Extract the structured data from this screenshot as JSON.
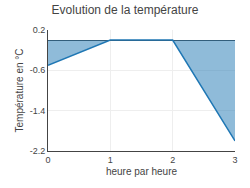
{
  "chart_data": {
    "type": "area",
    "title": "Evolution de la température",
    "xlabel": "heure par heure",
    "ylabel": "Température en °C",
    "x": [
      0,
      1,
      2,
      3
    ],
    "values": [
      -0.5,
      0.0,
      0.0,
      -2.0
    ],
    "xlim": [
      0,
      3
    ],
    "ylim": [
      -2.2,
      0.2
    ],
    "xticks": [
      0,
      1,
      2,
      3
    ],
    "yticks": [
      -2.2,
      -1.4,
      -0.6,
      0.2
    ],
    "grid": true
  }
}
